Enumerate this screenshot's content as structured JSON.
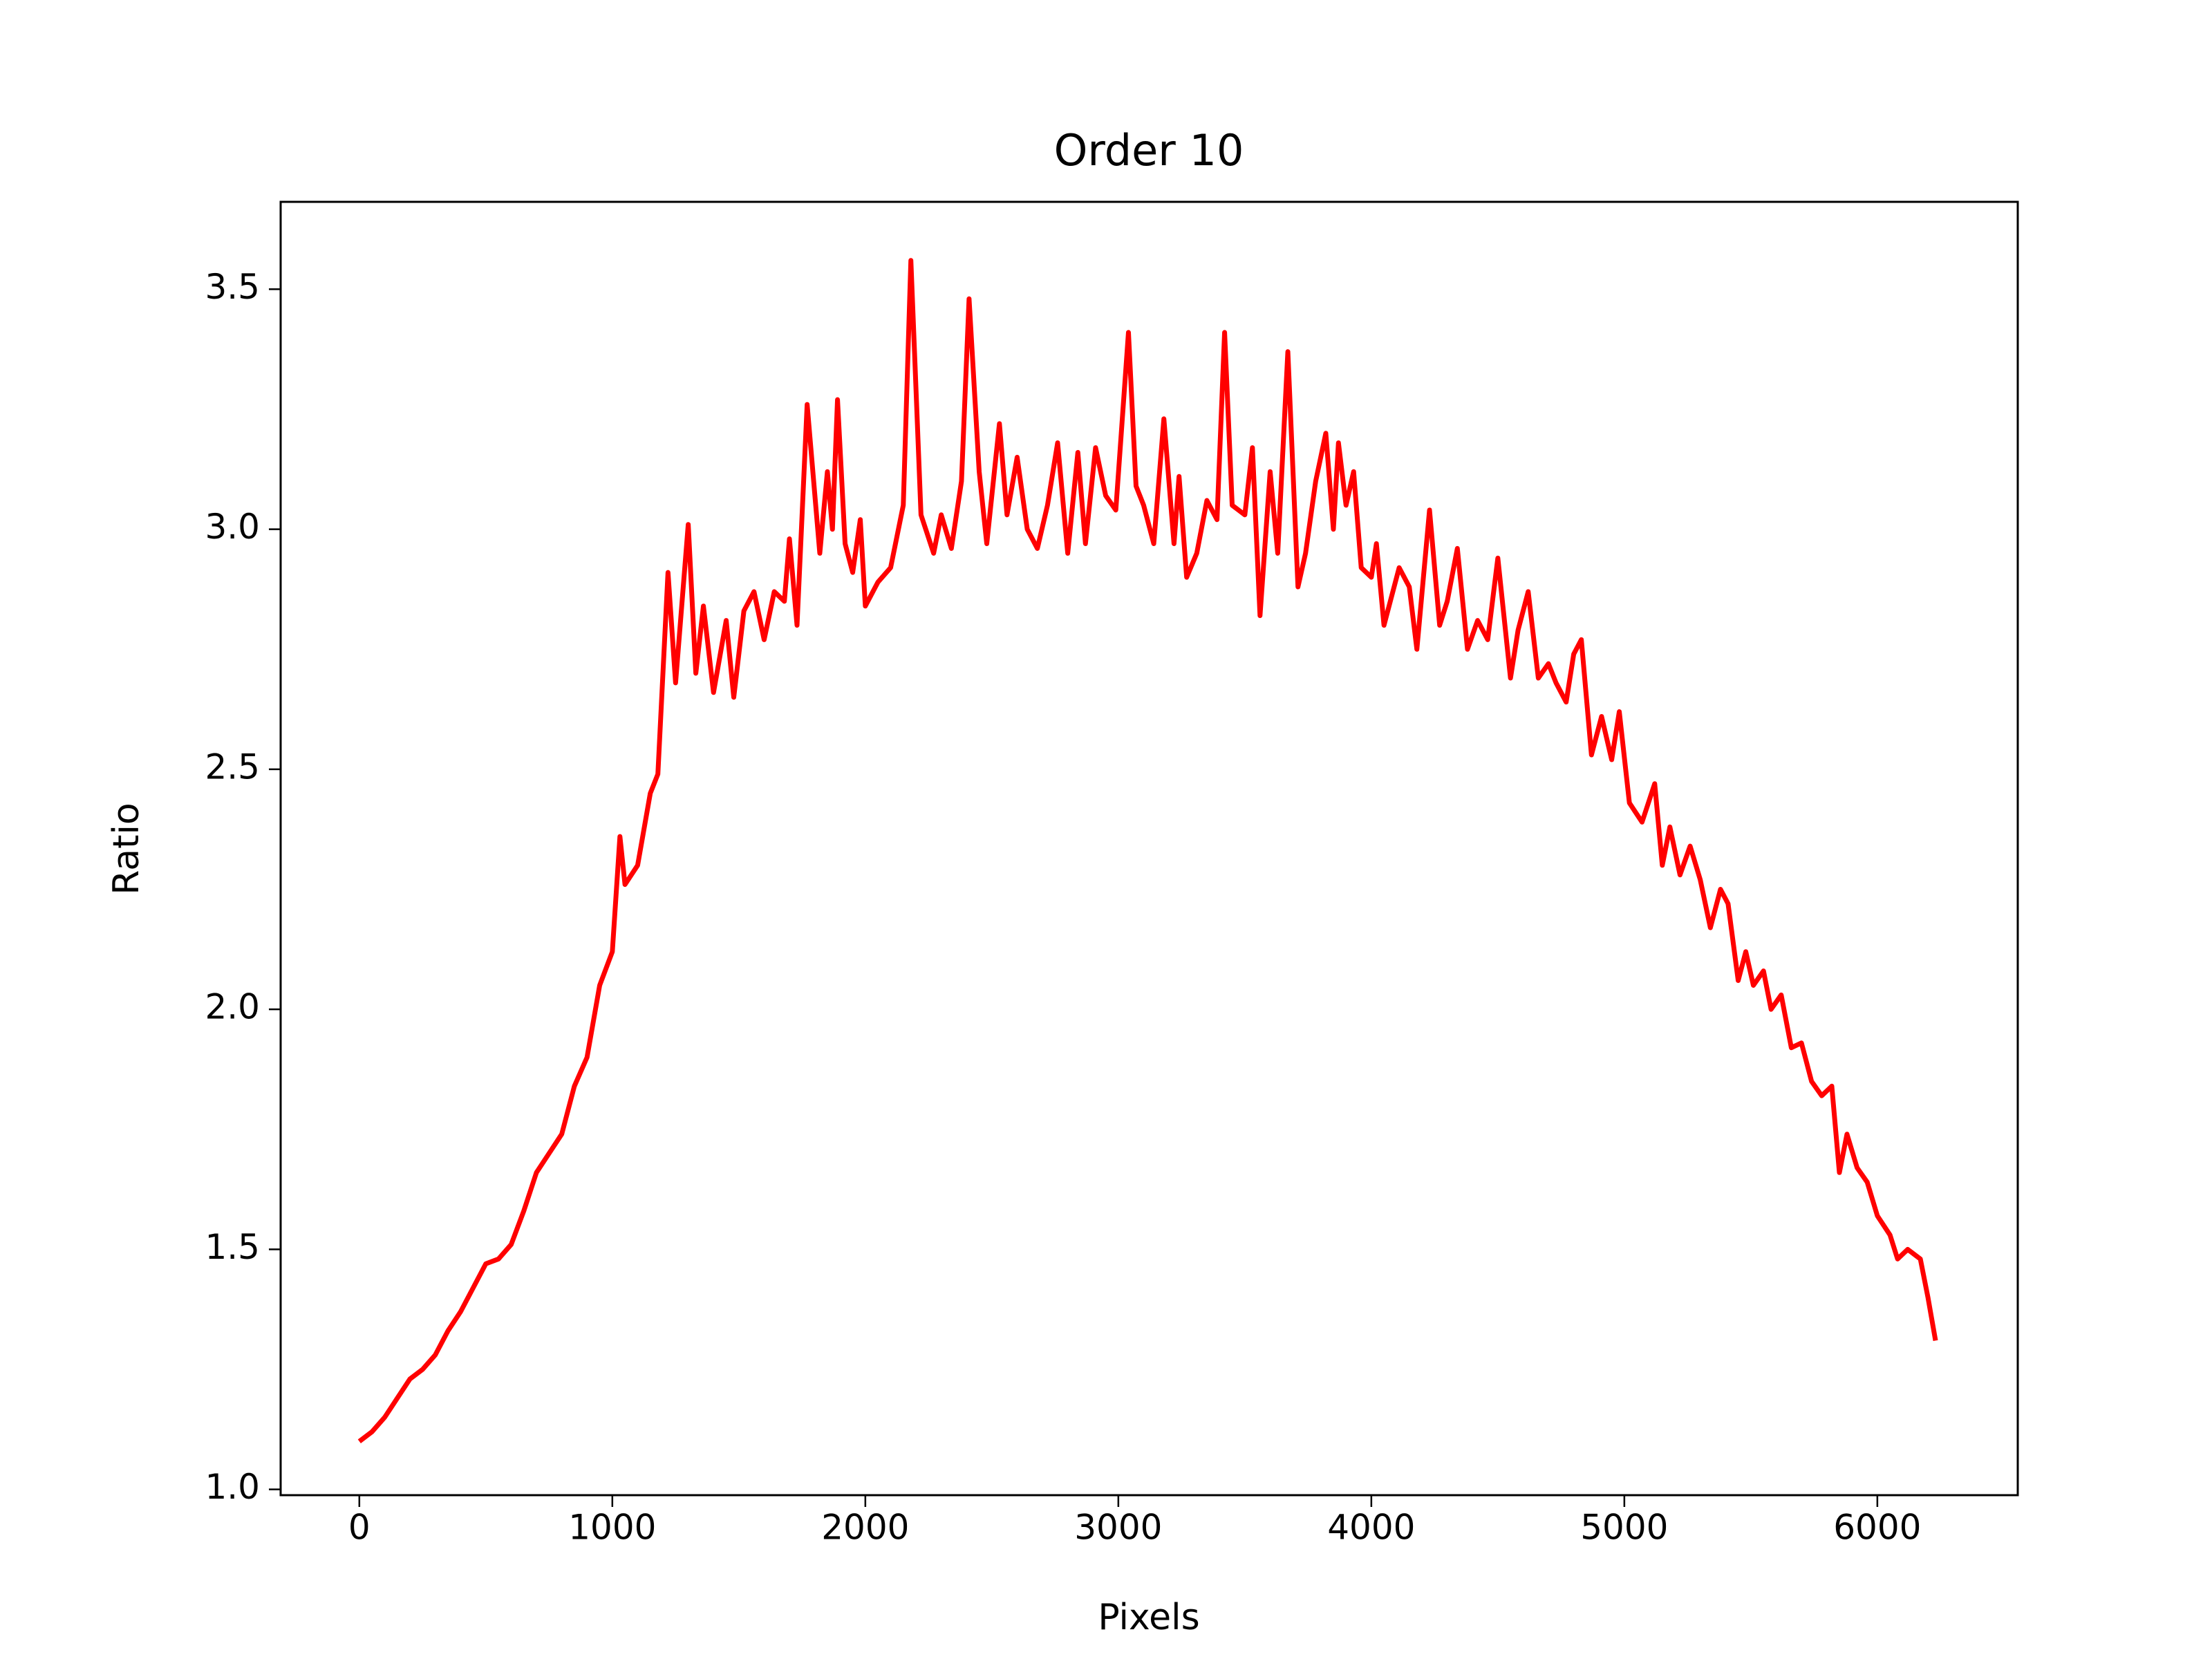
{
  "chart_data": {
    "type": "line",
    "title": "Order 10",
    "xlabel": "Pixels",
    "ylabel": "Ratio",
    "x": [
      0,
      50,
      100,
      150,
      200,
      250,
      300,
      350,
      400,
      450,
      500,
      550,
      600,
      650,
      700,
      750,
      800,
      850,
      900,
      950,
      1000,
      1030,
      1050,
      1100,
      1150,
      1180,
      1200,
      1220,
      1250,
      1300,
      1330,
      1360,
      1400,
      1450,
      1480,
      1520,
      1560,
      1600,
      1640,
      1680,
      1700,
      1730,
      1770,
      1820,
      1850,
      1870,
      1890,
      1920,
      1950,
      1980,
      2000,
      2050,
      2100,
      2150,
      2180,
      2220,
      2270,
      2300,
      2340,
      2380,
      2410,
      2450,
      2480,
      2530,
      2560,
      2600,
      2640,
      2680,
      2720,
      2760,
      2800,
      2840,
      2870,
      2910,
      2950,
      2990,
      3040,
      3070,
      3100,
      3140,
      3180,
      3220,
      3240,
      3270,
      3310,
      3350,
      3390,
      3420,
      3450,
      3500,
      3530,
      3560,
      3600,
      3630,
      3670,
      3710,
      3740,
      3780,
      3820,
      3850,
      3870,
      3900,
      3930,
      3960,
      4000,
      4020,
      4050,
      4080,
      4110,
      4150,
      4180,
      4230,
      4270,
      4300,
      4340,
      4380,
      4420,
      4460,
      4500,
      4550,
      4580,
      4620,
      4660,
      4700,
      4730,
      4770,
      4800,
      4830,
      4870,
      4910,
      4950,
      4980,
      5020,
      5070,
      5120,
      5150,
      5180,
      5220,
      5260,
      5300,
      5340,
      5380,
      5410,
      5450,
      5480,
      5510,
      5550,
      5580,
      5620,
      5660,
      5700,
      5740,
      5780,
      5820,
      5850,
      5880,
      5920,
      5960,
      6000,
      6050,
      6080,
      6120,
      6170,
      6200,
      6230
    ],
    "series": [
      {
        "name": "Ratio",
        "color": "#ff0000",
        "values": [
          1.1,
          1.12,
          1.15,
          1.19,
          1.23,
          1.25,
          1.28,
          1.33,
          1.37,
          1.42,
          1.47,
          1.48,
          1.51,
          1.58,
          1.66,
          1.7,
          1.74,
          1.84,
          1.9,
          2.05,
          2.12,
          2.36,
          2.26,
          2.3,
          2.45,
          2.49,
          2.7,
          2.91,
          2.68,
          3.01,
          2.7,
          2.84,
          2.66,
          2.81,
          2.65,
          2.83,
          2.87,
          2.77,
          2.87,
          2.85,
          2.98,
          2.8,
          3.26,
          2.95,
          3.12,
          3.0,
          3.27,
          2.97,
          2.91,
          3.02,
          2.84,
          2.89,
          2.92,
          3.05,
          3.56,
          3.03,
          2.95,
          3.03,
          2.96,
          3.1,
          3.48,
          3.12,
          2.97,
          3.22,
          3.03,
          3.15,
          3.0,
          2.96,
          3.05,
          3.18,
          2.95,
          3.16,
          2.97,
          3.17,
          3.07,
          3.04,
          3.41,
          3.09,
          3.05,
          2.97,
          3.23,
          2.97,
          3.11,
          2.9,
          2.95,
          3.06,
          3.02,
          3.41,
          3.05,
          3.03,
          3.17,
          2.82,
          3.12,
          2.95,
          3.37,
          2.88,
          2.95,
          3.1,
          3.2,
          3.0,
          3.18,
          3.05,
          3.12,
          2.92,
          2.9,
          2.97,
          2.8,
          2.86,
          2.92,
          2.88,
          2.75,
          3.04,
          2.8,
          2.85,
          2.96,
          2.75,
          2.81,
          2.77,
          2.94,
          2.69,
          2.79,
          2.87,
          2.69,
          2.72,
          2.68,
          2.64,
          2.74,
          2.77,
          2.53,
          2.61,
          2.52,
          2.62,
          2.43,
          2.39,
          2.47,
          2.3,
          2.38,
          2.28,
          2.34,
          2.27,
          2.17,
          2.25,
          2.22,
          2.06,
          2.12,
          2.05,
          2.08,
          2.0,
          2.03,
          1.92,
          1.93,
          1.85,
          1.82,
          1.84,
          1.66,
          1.74,
          1.67,
          1.64,
          1.57,
          1.53,
          1.48,
          1.5,
          1.48,
          1.4,
          1.31
        ]
      }
    ],
    "xlim": [
      -311,
      6555
    ],
    "ylim": [
      0.988,
      3.682
    ],
    "xticks": [
      0,
      1000,
      2000,
      3000,
      4000,
      5000,
      6000
    ],
    "yticks": [
      {
        "value": 1.0,
        "label": "1.0"
      },
      1.5,
      {
        "value": 2.0,
        "label": "2.0"
      },
      2.5,
      {
        "value": 3.0,
        "label": "3.0"
      },
      3.5
    ]
  }
}
